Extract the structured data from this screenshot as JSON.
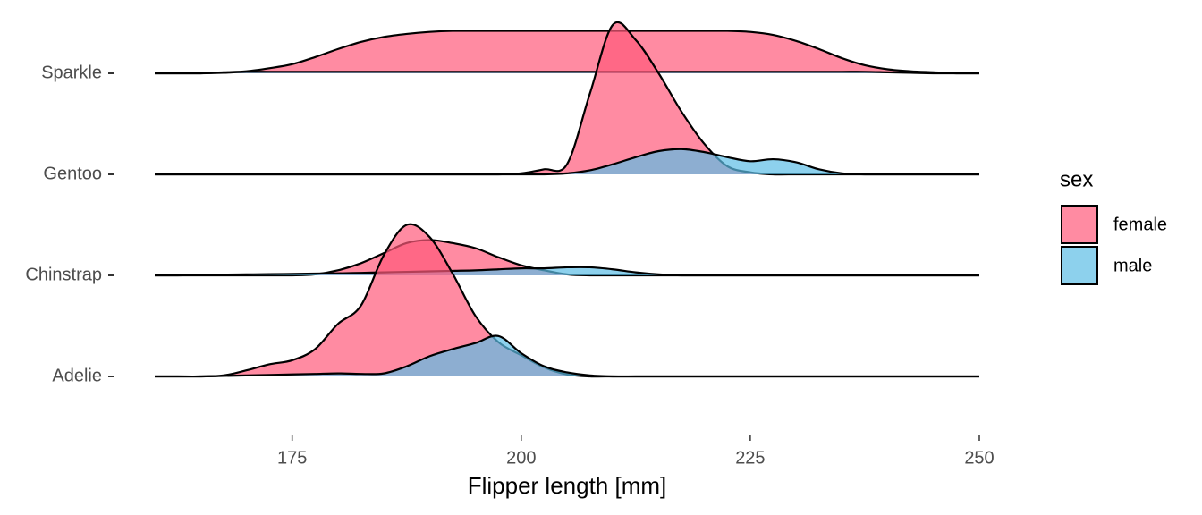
{
  "chart_data": {
    "type": "ridgeline",
    "x_label": "Flipper length [mm]",
    "legend_title": "sex",
    "categories": [
      "Sparkle",
      "Gentoo",
      "Chinstrap",
      "Adelie"
    ],
    "x": [
      160,
      162.5,
      165,
      167.5,
      170,
      172.5,
      175,
      177.5,
      180,
      182.5,
      185,
      187.5,
      190,
      192.5,
      195,
      197.5,
      200,
      202.5,
      205,
      207.5,
      210,
      212.5,
      215,
      217.5,
      220,
      222.5,
      225,
      227.5,
      230,
      232.5,
      235,
      237.5,
      240,
      242.5,
      245,
      247.5,
      250
    ],
    "series": [
      {
        "name": "female",
        "color": "#ff5a7a",
        "values": [
          [
            0,
            0,
            0,
            0.01,
            0.02,
            0.05,
            0.09,
            0.16,
            0.24,
            0.31,
            0.36,
            0.39,
            0.41,
            0.42,
            0.42,
            0.42,
            0.42,
            0.42,
            0.42,
            0.42,
            0.42,
            0.42,
            0.42,
            0.42,
            0.42,
            0.42,
            0.41,
            0.38,
            0.32,
            0.24,
            0.15,
            0.08,
            0.04,
            0.02,
            0.01,
            0,
            0
          ],
          [
            0,
            0,
            0,
            0,
            0,
            0,
            0,
            0,
            0,
            0,
            0,
            0,
            0,
            0,
            0,
            0,
            0.01,
            0.05,
            0.1,
            0.8,
            1.48,
            1.33,
            1.0,
            0.62,
            0.3,
            0.08,
            0.02,
            0,
            0,
            0,
            0,
            0,
            0,
            0,
            0,
            0,
            0
          ],
          [
            0,
            0,
            0,
            0,
            0,
            0,
            0,
            0.01,
            0.05,
            0.12,
            0.22,
            0.32,
            0.35,
            0.32,
            0.27,
            0.18,
            0.1,
            0.05,
            0.01,
            0,
            0,
            0,
            0,
            0,
            0,
            0,
            0,
            0,
            0,
            0,
            0,
            0,
            0,
            0,
            0,
            0,
            0
          ],
          [
            0,
            0,
            0,
            0.01,
            0.06,
            0.12,
            0.16,
            0.27,
            0.52,
            0.7,
            1.2,
            1.5,
            1.38,
            1.02,
            0.6,
            0.34,
            0.21,
            0.09,
            0.02,
            0,
            0,
            0,
            0,
            0,
            0,
            0,
            0,
            0,
            0,
            0,
            0,
            0,
            0,
            0,
            0,
            0,
            0
          ]
        ]
      },
      {
        "name": "male",
        "color": "#5cbde6",
        "values": [
          [
            0,
            0,
            0,
            0.005,
            0.015,
            0.015,
            0.015,
            0.015,
            0.015,
            0.015,
            0.015,
            0.015,
            0.015,
            0.015,
            0.015,
            0.015,
            0.015,
            0.015,
            0.015,
            0.015,
            0.015,
            0.015,
            0.015,
            0.015,
            0.015,
            0.015,
            0.015,
            0.015,
            0.015,
            0.015,
            0.015,
            0.015,
            0.01,
            0.005,
            0,
            0,
            0
          ],
          [
            0,
            0,
            0,
            0,
            0,
            0,
            0,
            0,
            0,
            0,
            0,
            0,
            0,
            0,
            0,
            0,
            0,
            0,
            0.01,
            0.04,
            0.1,
            0.17,
            0.23,
            0.25,
            0.22,
            0.17,
            0.13,
            0.15,
            0.12,
            0.05,
            0.01,
            0,
            0,
            0,
            0,
            0,
            0
          ],
          [
            0,
            0,
            0.005,
            0.008,
            0.01,
            0.012,
            0.015,
            0.018,
            0.02,
            0.025,
            0.03,
            0.035,
            0.04,
            0.045,
            0.05,
            0.06,
            0.07,
            0.07,
            0.08,
            0.08,
            0.06,
            0.03,
            0.01,
            0,
            0,
            0,
            0,
            0,
            0,
            0,
            0,
            0,
            0,
            0,
            0,
            0,
            0
          ],
          [
            0,
            0,
            0,
            0.005,
            0.01,
            0.015,
            0.02,
            0.025,
            0.03,
            0.025,
            0.03,
            0.1,
            0.2,
            0.27,
            0.33,
            0.4,
            0.23,
            0.1,
            0.04,
            0.01,
            0,
            0,
            0,
            0,
            0,
            0,
            0,
            0,
            0,
            0,
            0,
            0,
            0,
            0,
            0,
            0,
            0
          ]
        ]
      }
    ],
    "xlim": [
      160,
      250
    ],
    "xticks": [
      175,
      200,
      225,
      250
    ],
    "legend_position": "right"
  }
}
